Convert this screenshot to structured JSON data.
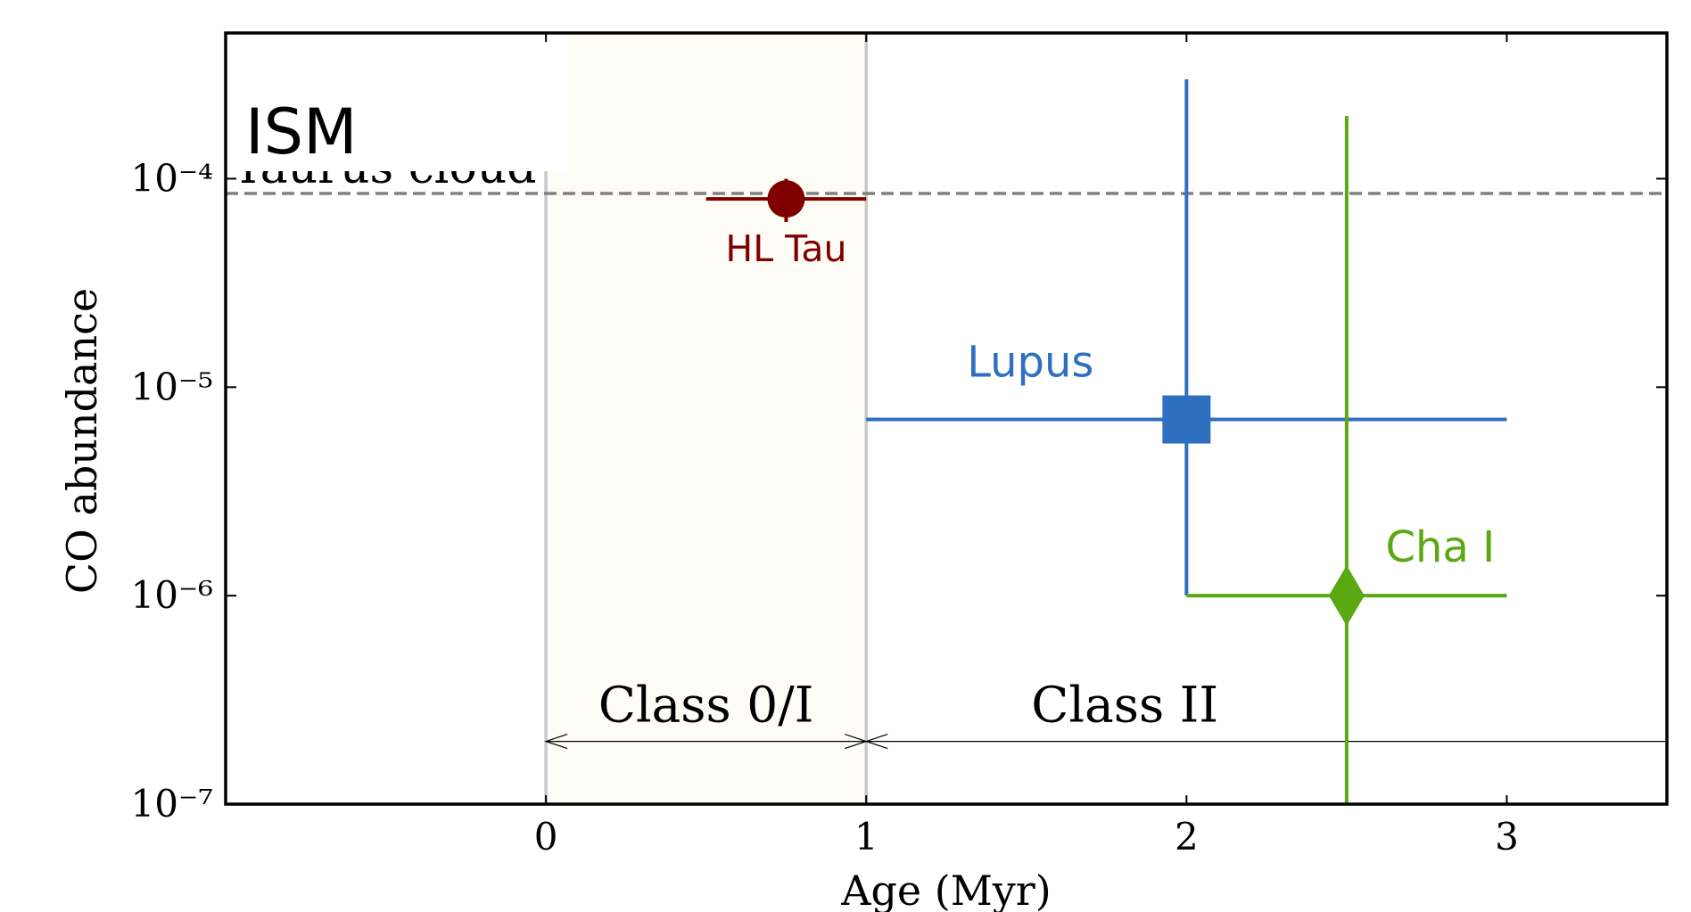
{
  "chart_data": {
    "type": "errorbar",
    "x_label": "Age (Myr)",
    "y_label": "CO abundance",
    "xlim": [
      -1,
      3.5
    ],
    "xticks": [
      0,
      1,
      2,
      3
    ],
    "ylim": [
      1e-07,
      0.0005
    ],
    "log_y": true,
    "yticks": [
      {
        "value": 1e-07,
        "label": "10⁻⁷"
      },
      {
        "value": 1e-06,
        "label": "10⁻⁶"
      },
      {
        "value": 1e-05,
        "label": "10⁻⁵"
      },
      {
        "value": 0.0001,
        "label": "10⁻⁴"
      }
    ],
    "series": [
      {
        "name": "HL Tau",
        "color": "#800000",
        "marker": "circle",
        "x": 0.75,
        "y": 8e-05,
        "xlow": 0.5,
        "xhigh": 1,
        "ylow": 6.2e-05,
        "yhigh": 0.0001
      },
      {
        "name": "Lupus",
        "color": "#2e6fbf",
        "marker": "square",
        "x": 2,
        "y": 7e-06,
        "xlow": 1,
        "xhigh": 3,
        "ylow": 1e-06,
        "yhigh": 0.0003
      },
      {
        "name": "Cha I",
        "color": "#5aa812",
        "marker": "diamond",
        "x": 2.5,
        "y": 1e-06,
        "xlow": 2,
        "xhigh": 3,
        "ylow": 1e-07,
        "yhigh": 0.0002
      }
    ],
    "reference_line": {
      "y": 8.5e-05,
      "label": "Taurus cloud",
      "title": "ISM",
      "color": "#808080"
    },
    "stage_lines": [
      0,
      1
    ],
    "shaded_region": {
      "x": [
        0,
        1
      ],
      "color": "#fdfdf5"
    },
    "stages": [
      {
        "label": "Class 0/I",
        "from": 0,
        "to": 1,
        "y": 2e-07
      },
      {
        "label": "Class II",
        "from": 1,
        "to": 3.5,
        "y": 2e-07
      }
    ]
  }
}
